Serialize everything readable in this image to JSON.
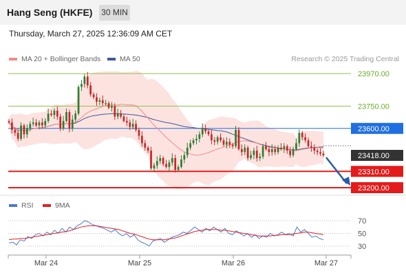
{
  "header": {
    "title": "Hang Seng (HKFE)",
    "timeframe": "30 MIN"
  },
  "timestamp": "Thursday, March 27, 2025 12:36:09 AM CET",
  "credit": "Research © 2025 Trading Central",
  "chart_data": [
    {
      "type": "candlestick",
      "legend": [
        {
          "label": "MA 20 + Bollinger Bands",
          "color": "#f28a8a"
        },
        {
          "label": "MA 50",
          "color": "#3a5a9a"
        }
      ],
      "ylim": [
        23200,
        24000
      ],
      "x_labels": [
        "Mar 24",
        "Mar 25",
        "Mar 26",
        "Mar 27"
      ],
      "levels": [
        {
          "value": 23970,
          "label": "23970.00",
          "color": "#8cc04a",
          "style": "resistance"
        },
        {
          "value": 23750,
          "label": "23750.00",
          "color": "#8cc04a",
          "style": "resistance"
        },
        {
          "value": 23600,
          "label": "23600.00",
          "color": "#1f6fe0",
          "style": "pivot"
        },
        {
          "value": 23418,
          "label": "23418.00",
          "color": "#333333",
          "style": "last"
        },
        {
          "value": 23310,
          "label": "23310.00",
          "color": "#e41b1b",
          "style": "support"
        },
        {
          "value": 23200,
          "label": "23200.00",
          "color": "#e41b1b",
          "style": "support"
        }
      ],
      "close": [
        23640,
        23590,
        23570,
        23530,
        23620,
        23560,
        23600,
        23630,
        23640,
        23620,
        23640,
        23620,
        23650,
        23700,
        23690,
        23720,
        23680,
        23600,
        23650,
        23710,
        23600,
        23660,
        23700,
        23880,
        23900,
        23950,
        23890,
        23830,
        23810,
        23780,
        23790,
        23770,
        23770,
        23740,
        23750,
        23680,
        23700,
        23680,
        23650,
        23640,
        23610,
        23630,
        23590,
        23550,
        23500,
        23470,
        23450,
        23330,
        23350,
        23380,
        23400,
        23360,
        23340,
        23370,
        23400,
        23320,
        23340,
        23390,
        23420,
        23470,
        23500,
        23520,
        23530,
        23560,
        23600,
        23580,
        23560,
        23520,
        23510,
        23540,
        23520,
        23490,
        23510,
        23490,
        23480,
        23590,
        23460,
        23440,
        23470,
        23400,
        23420,
        23450,
        23400,
        23410,
        23480,
        23460,
        23440,
        23460,
        23440,
        23470,
        23460,
        23480,
        23450,
        23420,
        23460,
        23500,
        23570,
        23540,
        23520,
        23480,
        23470,
        23450,
        23440,
        23430,
        23418
      ]
    },
    {
      "type": "line",
      "legend": [
        {
          "label": "RSI",
          "color": "#4a78d0"
        },
        {
          "label": "9MA",
          "color": "#e02020"
        }
      ],
      "y_ticks": [
        70,
        50,
        30
      ],
      "rsi": [
        35,
        36,
        32,
        40,
        38,
        45,
        42,
        48,
        50,
        46,
        52,
        48,
        55,
        50,
        58,
        52,
        60,
        56,
        62,
        65,
        70,
        68,
        64,
        62,
        60,
        58,
        55,
        52,
        56,
        50,
        46,
        50,
        44,
        48,
        40,
        36,
        34,
        30,
        38,
        40,
        42,
        36,
        40,
        44,
        46,
        48,
        52,
        50,
        55,
        60,
        56,
        52,
        58,
        54,
        60,
        56,
        52,
        58,
        50,
        48,
        54,
        50,
        46,
        50,
        44,
        48,
        42,
        46,
        44,
        50,
        46,
        48,
        52,
        48,
        50,
        46,
        60,
        52,
        56,
        50,
        44,
        46,
        42,
        40
      ],
      "ma9": [
        40,
        41,
        41,
        42,
        42,
        43,
        44,
        45,
        46,
        47,
        48,
        49,
        50,
        51,
        52,
        53,
        54,
        56,
        58,
        60,
        61,
        62,
        62,
        62,
        61,
        60,
        59,
        58,
        57,
        56,
        54,
        52,
        50,
        49,
        47,
        45,
        43,
        41,
        40,
        40,
        40,
        40,
        41,
        42,
        43,
        45,
        47,
        49,
        51,
        53,
        54,
        55,
        56,
        56,
        56,
        56,
        55,
        55,
        54,
        53,
        52,
        51,
        50,
        49,
        48,
        47,
        46,
        46,
        46,
        46,
        47,
        47,
        48,
        48,
        48,
        49,
        50,
        51,
        52,
        52,
        51,
        50,
        49,
        48
      ]
    }
  ]
}
